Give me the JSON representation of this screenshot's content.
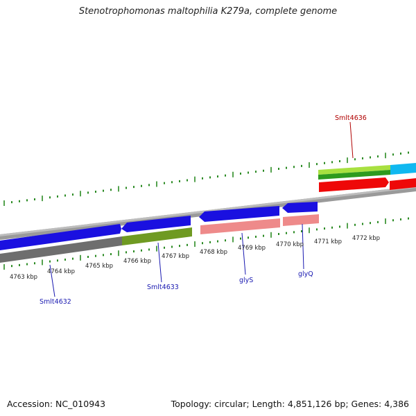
{
  "title": "Stenotrophomonas maltophilia K279a, complete genome",
  "footer": {
    "accession": "Accession: NC_010943",
    "summary": "Topology: circular; Length: 4,851,126 bp; Genes: 4,386"
  },
  "colors": {
    "backbone": "#8c8c8c",
    "ticks": "#2a8a22",
    "blue": "#1a10e0",
    "gray": "#6e6e6e",
    "olive": "#6f9a22",
    "pink": "#ee8a8a",
    "lime": "#a8e040",
    "green": "#2e9a1e",
    "red": "#ee0808",
    "cyan": "#10b8f0",
    "label_blue": "#1818b0",
    "label_red": "#b00000"
  },
  "scale_labels": [
    "4763 kbp",
    "4764 kbp",
    "4765 kbp",
    "4766 kbp",
    "4767 kbp",
    "4768 kbp",
    "4769 kbp",
    "4770 kbp",
    "4771 kbp",
    "4772 kbp"
  ],
  "gene_labels": [
    {
      "name": "Smlt4632",
      "color_key": "label_blue"
    },
    {
      "name": "Smlt4633",
      "color_key": "label_blue"
    },
    {
      "name": "glyS",
      "color_key": "label_blue"
    },
    {
      "name": "glyQ",
      "color_key": "label_blue"
    },
    {
      "name": "Smlt4636",
      "color_key": "label_red"
    }
  ]
}
